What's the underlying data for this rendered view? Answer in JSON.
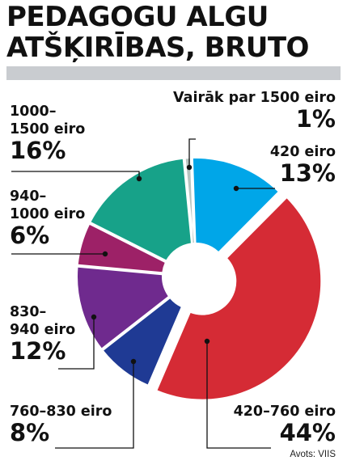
{
  "header": {
    "title_line1": "PEDAGOGU ALGU",
    "title_line2": "ATŠĶIRĪBAS, BRUTO"
  },
  "source": "Avots: VIIS",
  "chart_data": {
    "type": "pie",
    "title": "PEDAGOGU ALGU ATŠĶIRĪBAS, BRUTO",
    "unit": "%",
    "donut": true,
    "slices": [
      {
        "label": "420 eiro",
        "value": 13,
        "display": "13%",
        "color": "#00a6e8"
      },
      {
        "label": "420–760 eiro",
        "value": 44,
        "display": "44%",
        "color": "#d52b35"
      },
      {
        "label": "760–830 eiro",
        "value": 8,
        "display": "8%",
        "color": "#1f3a94"
      },
      {
        "label": "830–940 eiro",
        "value": 12,
        "display": "12%",
        "color": "#6f2a8e"
      },
      {
        "label": "940–1000 eiro",
        "value": 6,
        "display": "6%",
        "color": "#9d2167"
      },
      {
        "label": "1000–1500 eiro",
        "value": 16,
        "display": "16%",
        "color": "#17a289"
      },
      {
        "label": "Vairāk par 1500 eiro",
        "value": 1,
        "display": "1%",
        "color": "#b8c4c0"
      }
    ],
    "label_lines": [
      [
        "420",
        "eiro"
      ],
      [
        "420–760 eiro"
      ],
      [
        "760–830 eiro"
      ],
      [
        "830–",
        "940 eiro"
      ],
      [
        "940–",
        "1000 eiro"
      ],
      [
        "1000–",
        "1500 eiro"
      ],
      [
        "Vairāk par 1500 eiro"
      ]
    ]
  }
}
